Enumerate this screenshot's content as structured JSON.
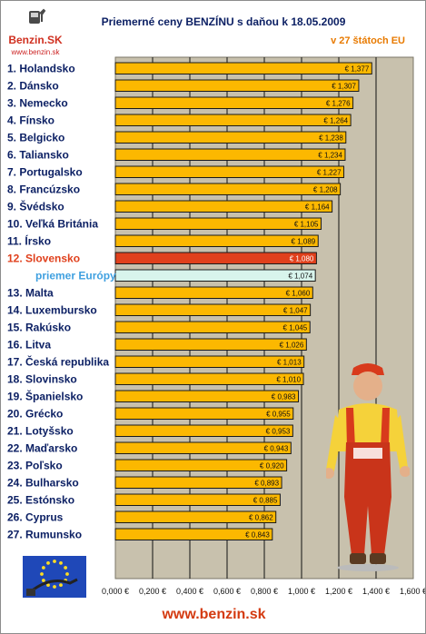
{
  "logo": {
    "name": "Benzin.SK",
    "url": "www.benzin.sk"
  },
  "title": "Priemerné ceny BENZÍNU s daňou k 18.05.2009",
  "subtitle": "v 27 štátoch EU",
  "footer": {
    "website": "www.benzin.sk"
  },
  "colors": {
    "bar": "#fcb800",
    "bar_highlight": "#e0401c",
    "bar_average": "#d8f4ec",
    "plot_bg": "#c8c1ad",
    "label": "#0b1f63",
    "label_highlight": "#e0401c",
    "label_average": "#3fa0e0"
  },
  "chart_data": {
    "type": "bar",
    "orientation": "horizontal",
    "categories": [
      "1. Holandsko",
      "2. Dánsko",
      "3. Nemecko",
      "4. Fínsko",
      "5. Belgicko",
      "6. Taliansko",
      "7. Portugalsko",
      "8. Francúzsko",
      "9. Švédsko",
      "10. Veľká Británia",
      "11. Írsko",
      "12. Slovensko",
      "priemer Európy",
      "13. Malta",
      "14. Luxembursko",
      "15. Rakúsko",
      "16. Litva",
      "17. Česká republika",
      "18. Slovinsko",
      "19. Španielsko",
      "20. Grécko",
      "21. Lotyšsko",
      "22. Maďarsko",
      "23. Poľsko",
      "24. Bulharsko",
      "25. Estónsko",
      "26. Cyprus",
      "27. Rumunsko"
    ],
    "values": [
      1.377,
      1.307,
      1.276,
      1.264,
      1.238,
      1.234,
      1.227,
      1.208,
      1.164,
      1.105,
      1.089,
      1.08,
      1.074,
      1.06,
      1.047,
      1.045,
      1.026,
      1.013,
      1.01,
      0.983,
      0.955,
      0.953,
      0.943,
      0.92,
      0.893,
      0.885,
      0.862,
      0.843
    ],
    "value_labels": [
      "€ 1,377",
      "€ 1,307",
      "€ 1,276",
      "€ 1,264",
      "€ 1,238",
      "€ 1,234",
      "€ 1,227",
      "€ 1,208",
      "€ 1,164",
      "€ 1,105",
      "€ 1,089",
      "€ 1,080",
      "€ 1,074",
      "€ 1,060",
      "€ 1,047",
      "€ 1,045",
      "€ 1,026",
      "€ 1,013",
      "€ 1,010",
      "€ 0,983",
      "€ 0,955",
      "€ 0,953",
      "€ 0,943",
      "€ 0,920",
      "€ 0,893",
      "€ 0,885",
      "€ 0,862",
      "€ 0,843"
    ],
    "highlight": "12. Slovensko",
    "average": "priemer Európy",
    "xlim": [
      0,
      1.6
    ],
    "xticks": [
      0,
      0.2,
      0.4,
      0.6,
      0.8,
      1.0,
      1.2,
      1.4,
      1.6
    ],
    "xtick_labels": [
      "0,000 €",
      "0,200 €",
      "0,400 €",
      "0,600 €",
      "0,800 €",
      "1,000 €",
      "1,200 €",
      "1,400 €",
      "1,600 €"
    ],
    "grid": true
  }
}
